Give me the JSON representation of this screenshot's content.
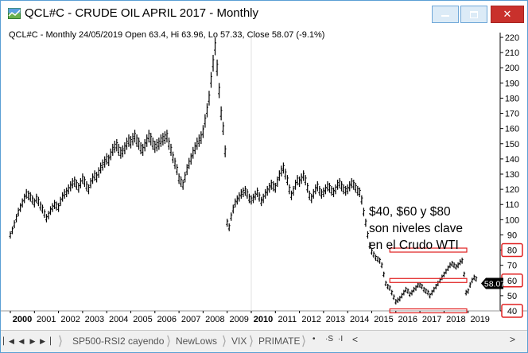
{
  "window": {
    "title": "QCL#C - CRUDE OIL APRIL 2017 - Monthly",
    "minimize": "minimize",
    "maximize": "maximize",
    "close": "close"
  },
  "chart": {
    "header": "QCL#C - Monthly 24/05/2019 Open 63.4, Hi 63.96, Lo 57.33, Close 58.07 (-9.1%)",
    "annotation_lines": [
      "$40, $60 y $80",
      "son niveles clave",
      "en el Crudo WTI"
    ],
    "last_price_label": "58.07",
    "colors": {
      "bars": "#000000",
      "levels": "#e02020",
      "price_tag": "#000000"
    }
  },
  "chart_data": {
    "type": "bar",
    "bar_style": "ohlc",
    "y_axis": {
      "ticks": [
        40,
        50,
        60,
        70,
        80,
        90,
        100,
        110,
        120,
        130,
        140,
        150,
        160,
        170,
        180,
        190,
        200,
        210,
        220
      ],
      "position": "right"
    },
    "x_axis": {
      "labels": [
        "2000",
        "2001",
        "2002",
        "2003",
        "2004",
        "2005",
        "2006",
        "2007",
        "2008",
        "2009",
        "2010",
        "2011",
        "2012",
        "2013",
        "2014",
        "2015",
        "2016",
        "2017",
        "2018",
        "2019"
      ],
      "bold_labels": [
        "2000",
        "2010"
      ]
    },
    "highlight_levels": [
      40,
      60,
      80
    ],
    "boxed_ticks": [
      40,
      60,
      80
    ],
    "last_close": 58.07,
    "series": [
      {
        "year": 2000,
        "values": [
          90,
          93,
          97,
          101,
          105,
          108,
          111,
          114,
          117,
          116,
          115,
          113
        ]
      },
      {
        "year": 2001,
        "values": [
          111,
          114,
          112,
          109,
          107,
          104,
          101,
          103,
          106,
          108,
          110,
          109
        ]
      },
      {
        "year": 2002,
        "values": [
          108,
          112,
          115,
          117,
          118,
          120,
          122,
          124,
          125,
          123,
          121,
          124
        ]
      },
      {
        "year": 2003,
        "values": [
          127,
          125,
          122,
          120,
          124,
          127,
          129,
          128,
          131,
          134,
          136,
          138
        ]
      },
      {
        "year": 2004,
        "values": [
          140,
          139,
          143,
          146,
          148,
          149,
          146,
          144,
          145,
          147,
          150,
          152
        ]
      },
      {
        "year": 2005,
        "values": [
          151,
          153,
          155,
          152,
          150,
          147,
          146,
          149,
          152,
          155,
          153,
          150
        ]
      },
      {
        "year": 2006,
        "values": [
          148,
          149,
          150,
          152,
          153,
          154,
          155,
          150,
          146,
          141,
          137,
          133
        ]
      },
      {
        "year": 2007,
        "values": [
          127,
          125,
          123,
          128,
          133,
          137,
          140,
          144,
          147,
          150,
          152,
          154
        ]
      },
      {
        "year": 2008,
        "values": [
          158,
          165,
          172,
          180,
          192,
          203,
          214,
          200,
          185,
          170,
          160,
          145
        ]
      },
      {
        "year": 2009,
        "values": [
          98,
          95,
          102,
          107,
          111,
          113,
          115,
          117,
          118,
          119,
          117,
          114
        ]
      },
      {
        "year": 2010,
        "values": [
          113,
          114,
          116,
          118,
          115,
          112,
          114,
          117,
          119,
          121,
          123,
          122
        ]
      },
      {
        "year": 2011,
        "values": [
          121,
          125,
          129,
          132,
          134,
          130,
          126,
          120,
          116,
          119,
          123,
          126
        ]
      },
      {
        "year": 2012,
        "values": [
          125,
          127,
          129,
          126,
          121,
          116,
          114,
          117,
          120,
          122,
          119,
          117
        ]
      },
      {
        "year": 2013,
        "values": [
          118,
          120,
          122,
          121,
          119,
          118,
          120,
          123,
          124,
          122,
          120,
          119
        ]
      },
      {
        "year": 2014,
        "values": [
          120,
          122,
          124,
          123,
          121,
          119,
          118,
          113,
          105,
          98,
          90,
          83
        ]
      },
      {
        "year": 2015,
        "values": [
          79,
          77,
          75,
          74,
          73,
          70,
          64,
          58,
          56,
          55,
          52,
          49
        ]
      },
      {
        "year": 2016,
        "values": [
          46,
          47,
          48,
          50,
          52,
          54,
          53,
          51,
          52,
          54,
          55,
          57
        ]
      },
      {
        "year": 2017,
        "values": [
          57,
          56,
          54,
          53,
          52,
          50,
          52,
          54,
          56,
          58,
          60,
          62
        ]
      },
      {
        "year": 2018,
        "values": [
          64,
          66,
          68,
          70,
          71,
          70,
          69,
          70,
          72,
          73,
          64,
          52
        ]
      },
      {
        "year": 2019,
        "values": [
          53,
          57,
          60,
          62,
          61
        ]
      }
    ]
  },
  "tabbar": {
    "tabs": [
      "SP500-RSI2 cayendo",
      "NewLows",
      "VIX",
      "PRIMATE"
    ],
    "small_tabs": [
      "•",
      "·S",
      "·I"
    ],
    "scroll_left": "<",
    "scroll_right": ">"
  }
}
